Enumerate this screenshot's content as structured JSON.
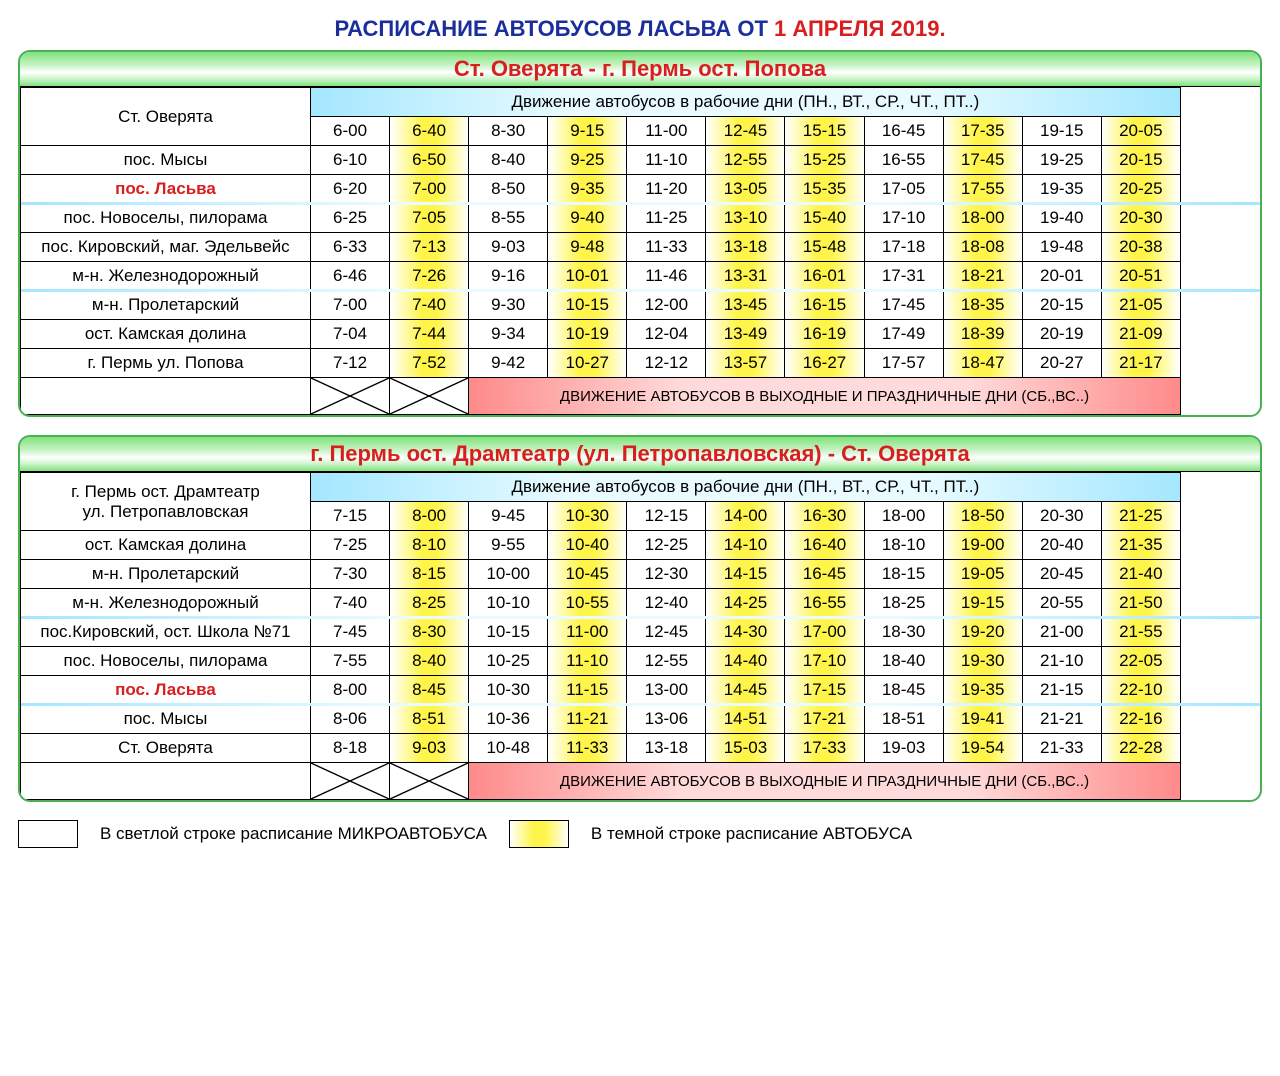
{
  "title_part1": "РАСПИСАНИЕ АВТОБУСОВ ЛАСЬВА ОТ ",
  "title_part2": "1 АПРЕЛЯ 2019.",
  "workday_header": "Движение автобусов в рабочие дни (ПН., ВТ., СР., ЧТ., ПТ..)",
  "weekend_footer": "ДВИЖЕНИЕ АВТОБУСОВ В ВЫХОДНЫЕ И ПРАЗДНИЧНЫЕ ДНИ (СБ.,ВС..)",
  "highlight_columns": [
    1,
    3,
    5,
    6,
    8,
    10
  ],
  "legend": {
    "light": "В светлой строке расписание МИКРОАВТОБУСА",
    "dark": "В темной строке расписание АВТОБУСА"
  },
  "blocks": [
    {
      "route_title": "Ст. Оверята - г. Пермь ост. Попова",
      "origin_label": "Ст. Оверята",
      "dividers_after": [
        2,
        5
      ],
      "rows": [
        {
          "stop": "Ст. Оверята",
          "skip_stop": true,
          "times": [
            "6-00",
            "6-40",
            "8-30",
            "9-15",
            "11-00",
            "12-45",
            "15-15",
            "16-45",
            "17-35",
            "19-15",
            "20-05"
          ]
        },
        {
          "stop": "пос. Мысы",
          "times": [
            "6-10",
            "6-50",
            "8-40",
            "9-25",
            "11-10",
            "12-55",
            "15-25",
            "16-55",
            "17-45",
            "19-25",
            "20-15"
          ]
        },
        {
          "stop": "пос. Ласьва",
          "red": true,
          "times": [
            "6-20",
            "7-00",
            "8-50",
            "9-35",
            "11-20",
            "13-05",
            "15-35",
            "17-05",
            "17-55",
            "19-35",
            "20-25"
          ]
        },
        {
          "stop": "пос. Новоселы, пилорама",
          "times": [
            "6-25",
            "7-05",
            "8-55",
            "9-40",
            "11-25",
            "13-10",
            "15-40",
            "17-10",
            "18-00",
            "19-40",
            "20-30"
          ]
        },
        {
          "stop": "пос. Кировский, маг. Эдельвейс",
          "times": [
            "6-33",
            "7-13",
            "9-03",
            "9-48",
            "11-33",
            "13-18",
            "15-48",
            "17-18",
            "18-08",
            "19-48",
            "20-38"
          ]
        },
        {
          "stop": "м-н. Железнодорожный",
          "times": [
            "6-46",
            "7-26",
            "9-16",
            "10-01",
            "11-46",
            "13-31",
            "16-01",
            "17-31",
            "18-21",
            "20-01",
            "20-51"
          ]
        },
        {
          "stop": "м-н. Пролетарский",
          "times": [
            "7-00",
            "7-40",
            "9-30",
            "10-15",
            "12-00",
            "13-45",
            "16-15",
            "17-45",
            "18-35",
            "20-15",
            "21-05"
          ]
        },
        {
          "stop": "ост. Камская долина",
          "times": [
            "7-04",
            "7-44",
            "9-34",
            "10-19",
            "12-04",
            "13-49",
            "16-19",
            "17-49",
            "18-39",
            "20-19",
            "21-09"
          ]
        },
        {
          "stop": "г. Пермь ул. Попова",
          "times": [
            "7-12",
            "7-52",
            "9-42",
            "10-27",
            "12-12",
            "13-57",
            "16-27",
            "17-57",
            "18-47",
            "20-27",
            "21-17"
          ]
        }
      ]
    },
    {
      "route_title": "г. Пермь ост. Драмтеатр (ул. Петропавловская) - Ст. Оверята",
      "origin_label": "г. Пермь ост. Драмтеатр\nул. Петропавловская",
      "dividers_after": [
        3,
        6
      ],
      "rows": [
        {
          "stop": "",
          "skip_stop": true,
          "times": [
            "7-15",
            "8-00",
            "9-45",
            "10-30",
            "12-15",
            "14-00",
            "16-30",
            "18-00",
            "18-50",
            "20-30",
            "21-25"
          ]
        },
        {
          "stop": "ост. Камская долина",
          "times": [
            "7-25",
            "8-10",
            "9-55",
            "10-40",
            "12-25",
            "14-10",
            "16-40",
            "18-10",
            "19-00",
            "20-40",
            "21-35"
          ]
        },
        {
          "stop": "м-н. Пролетарский",
          "times": [
            "7-30",
            "8-15",
            "10-00",
            "10-45",
            "12-30",
            "14-15",
            "16-45",
            "18-15",
            "19-05",
            "20-45",
            "21-40"
          ]
        },
        {
          "stop": "м-н. Железнодорожный",
          "times": [
            "7-40",
            "8-25",
            "10-10",
            "10-55",
            "12-40",
            "14-25",
            "16-55",
            "18-25",
            "19-15",
            "20-55",
            "21-50"
          ]
        },
        {
          "stop": "пос.Кировский, ост. Школа №71",
          "times": [
            "7-45",
            "8-30",
            "10-15",
            "11-00",
            "12-45",
            "14-30",
            "17-00",
            "18-30",
            "19-20",
            "21-00",
            "21-55"
          ]
        },
        {
          "stop": "пос. Новоселы, пилорама",
          "times": [
            "7-55",
            "8-40",
            "10-25",
            "11-10",
            "12-55",
            "14-40",
            "17-10",
            "18-40",
            "19-30",
            "21-10",
            "22-05"
          ]
        },
        {
          "stop": "пос. Ласьва",
          "red": true,
          "times": [
            "8-00",
            "8-45",
            "10-30",
            "11-15",
            "13-00",
            "14-45",
            "17-15",
            "18-45",
            "19-35",
            "21-15",
            "22-10"
          ]
        },
        {
          "stop": "пос. Мысы",
          "times": [
            "8-06",
            "8-51",
            "10-36",
            "11-21",
            "13-06",
            "14-51",
            "17-21",
            "18-51",
            "19-41",
            "21-21",
            "22-16"
          ]
        },
        {
          "stop": "Ст. Оверята",
          "times": [
            "8-18",
            "9-03",
            "10-48",
            "11-33",
            "13-18",
            "15-03",
            "17-33",
            "19-03",
            "19-54",
            "21-33",
            "22-28"
          ]
        }
      ]
    }
  ]
}
